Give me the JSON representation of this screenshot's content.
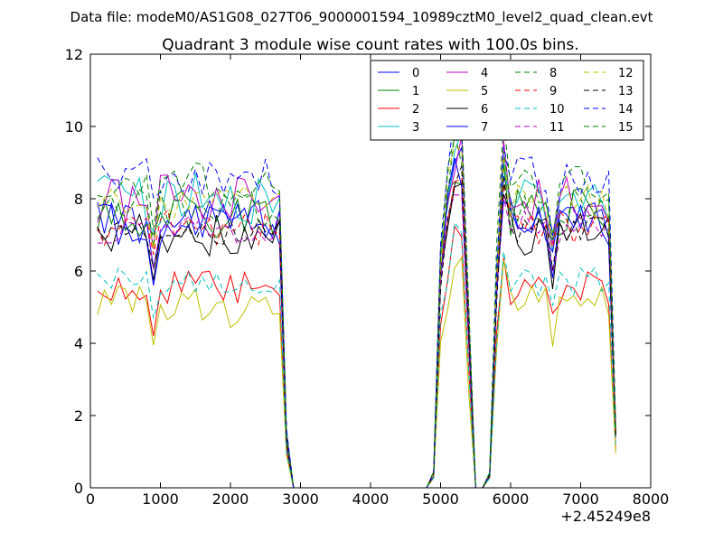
{
  "figure": {
    "suptitle": "Data file: modeM0/AS1G08_027T06_9000001594_10989cztM0_level2_quad_clean.evt",
    "title": "Quadrant 3 module wise count rates with 100.0s bins."
  },
  "chart_data": {
    "type": "line",
    "title": "Quadrant 3 module wise count rates with 100.0s bins.",
    "xlabel": "",
    "ylabel": "",
    "x_offset_label": "+2.45249e8",
    "xlim": [
      0,
      8000
    ],
    "ylim": [
      0,
      12
    ],
    "xticks": [
      0,
      1000,
      2000,
      3000,
      4000,
      5000,
      6000,
      7000,
      8000
    ],
    "yticks": [
      0,
      2,
      4,
      6,
      8,
      10,
      12
    ],
    "grid": false,
    "legend_position": "top-right",
    "legend_columns": 4,
    "series": [
      {
        "name": "0",
        "color": "#0000ff",
        "style": "solid",
        "base": 7.4,
        "v": 0.7
      },
      {
        "name": "1",
        "color": "#008000",
        "style": "solid",
        "base": 7.6,
        "v": 0.7
      },
      {
        "name": "2",
        "color": "#ff0000",
        "style": "solid",
        "base": 5.5,
        "v": 0.5
      },
      {
        "name": "3",
        "color": "#00bfbf",
        "style": "solid",
        "base": 8.1,
        "v": 0.8
      },
      {
        "name": "4",
        "color": "#bf00bf",
        "style": "solid",
        "base": 8.0,
        "v": 0.7
      },
      {
        "name": "5",
        "color": "#bfbf00",
        "style": "solid",
        "base": 5.0,
        "v": 0.6
      },
      {
        "name": "6",
        "color": "#000000",
        "style": "solid",
        "base": 7.0,
        "v": 0.6
      },
      {
        "name": "7",
        "color": "#0000ff",
        "style": "solid",
        "base": 7.3,
        "v": 0.6
      },
      {
        "name": "8",
        "color": "#008000",
        "style": "dashed",
        "base": 7.8,
        "v": 0.6
      },
      {
        "name": "9",
        "color": "#ff0000",
        "style": "dashed",
        "base": 7.2,
        "v": 0.5
      },
      {
        "name": "10",
        "color": "#00bfbf",
        "style": "dashed",
        "base": 5.7,
        "v": 0.4
      },
      {
        "name": "11",
        "color": "#bf00bf",
        "style": "dashed",
        "base": 7.2,
        "v": 0.5
      },
      {
        "name": "12",
        "color": "#bfbf00",
        "style": "dashed",
        "base": 7.9,
        "v": 0.5
      },
      {
        "name": "13",
        "color": "#000000",
        "style": "dashed",
        "base": 7.1,
        "v": 0.4
      },
      {
        "name": "14",
        "color": "#0000ff",
        "style": "dashed",
        "base": 8.6,
        "v": 0.6
      },
      {
        "name": "15",
        "color": "#008000",
        "style": "dashed",
        "base": 8.4,
        "v": 0.6
      }
    ],
    "segments": [
      {
        "x_start": 100,
        "x_end": 2700,
        "level": 1.0
      },
      {
        "x_start": 4900,
        "x_end": 5400,
        "level": 1.0
      },
      {
        "x_start": 5700,
        "x_end": 7500,
        "level": 1.0
      }
    ]
  }
}
